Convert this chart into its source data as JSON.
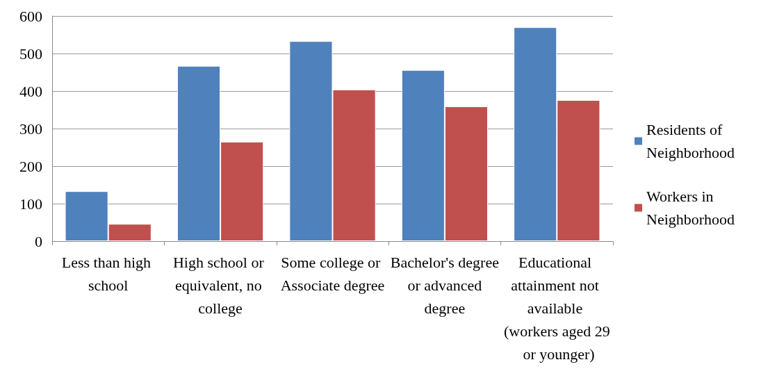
{
  "chart_data": {
    "type": "bar",
    "categories": [
      "Less than high school",
      "High school or equivalent, no college",
      "Some college or Associate degree",
      "Bachelor's degree or advanced degree",
      "Educational attainment not available (workers aged 29 or younger)"
    ],
    "series": [
      {
        "name": "Residents of Neighborhood",
        "color": "#4f81bd",
        "values": [
          133,
          467,
          533,
          456,
          570
        ]
      },
      {
        "name": "Workers in Neighborhood",
        "color": "#c0504d",
        "values": [
          46,
          265,
          404,
          359,
          376
        ]
      }
    ],
    "ylim": [
      0,
      600
    ],
    "yticks": [
      0,
      100,
      200,
      300,
      400,
      500,
      600
    ],
    "grid": "y",
    "legend": "right"
  }
}
